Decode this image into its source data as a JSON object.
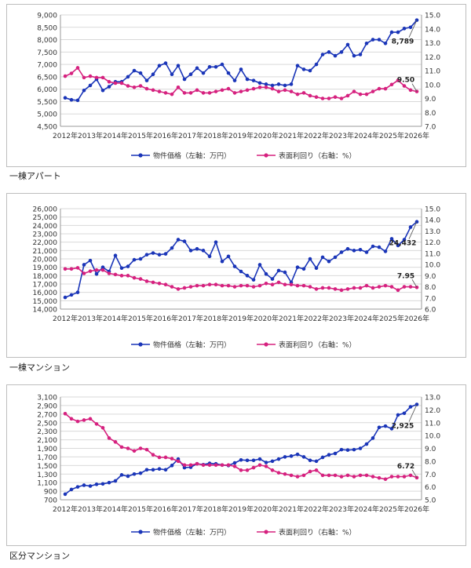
{
  "colors": {
    "price": "#1a35b8",
    "yield": "#d6217f",
    "grid": "#d9d9d9"
  },
  "captions": [
    "一棟アパート",
    "一棟マンション",
    "区分マンション"
  ],
  "chart_data": [
    {
      "type": "line",
      "title": "",
      "legend": {
        "position": "bottom",
        "entries": [
          "物件価格（左軸：万円）",
          "表面利回り（右軸：%）"
        ]
      },
      "x_ticks": [
        "2012年",
        "2013年",
        "2014年",
        "2015年",
        "2016年",
        "2017年",
        "2018年",
        "2019年",
        "2020年",
        "2021年",
        "2022年",
        "2023年",
        "2024年",
        "2025年",
        "2026年"
      ],
      "y_left": {
        "min": 4500,
        "max": 9000,
        "step": 500,
        "ticks": [
          "4,500",
          "5,000",
          "5,500",
          "6,000",
          "6,500",
          "7,000",
          "7,500",
          "8,000",
          "8,500",
          "9,000"
        ]
      },
      "y_right": {
        "min": 7.0,
        "max": 15.0,
        "step": 1.0,
        "ticks": [
          "7.0",
          "8.0",
          "9.0",
          "10.0",
          "11.0",
          "12.0",
          "13.0",
          "14.0",
          "15.0"
        ]
      },
      "series": [
        {
          "name": "物件価格（左軸：万円）",
          "axis": "left",
          "values": [
            5650,
            5570,
            5550,
            5950,
            6150,
            6400,
            5950,
            6100,
            6300,
            6300,
            6500,
            6750,
            6650,
            6350,
            6600,
            6950,
            7050,
            6600,
            6950,
            6400,
            6600,
            6850,
            6650,
            6900,
            6900,
            7000,
            6650,
            6350,
            6800,
            6400,
            6350,
            6250,
            6200,
            6150,
            6200,
            6150,
            6200,
            6950,
            6800,
            6750,
            7000,
            7400,
            7500,
            7350,
            7500,
            7800,
            7350,
            7400,
            7850,
            8000,
            8000,
            7850,
            8300,
            8300,
            8450,
            8500,
            8789
          ]
        },
        {
          "name": "表面利回り（右軸：%）",
          "axis": "right",
          "values": [
            10.6,
            10.8,
            11.2,
            10.5,
            10.6,
            10.5,
            10.5,
            10.2,
            10.1,
            10.1,
            9.9,
            9.8,
            9.9,
            9.7,
            9.6,
            9.5,
            9.4,
            9.3,
            9.8,
            9.4,
            9.4,
            9.6,
            9.4,
            9.4,
            9.5,
            9.6,
            9.7,
            9.4,
            9.5,
            9.6,
            9.7,
            9.8,
            9.8,
            9.7,
            9.5,
            9.6,
            9.5,
            9.3,
            9.4,
            9.2,
            9.1,
            9.0,
            9.0,
            9.1,
            9.0,
            9.2,
            9.5,
            9.3,
            9.3,
            9.5,
            9.7,
            9.7,
            10.0,
            10.3,
            9.9,
            9.6,
            9.5
          ]
        }
      ],
      "annotations": [
        {
          "series": 0,
          "text": "8,789"
        },
        {
          "series": 1,
          "text": "9.50"
        }
      ]
    },
    {
      "type": "line",
      "title": "",
      "legend": {
        "position": "bottom",
        "entries": [
          "物件価格（左軸：万円）",
          "表面利回り（右軸：%）"
        ]
      },
      "x_ticks": [
        "2012年",
        "2013年",
        "2014年",
        "2015年",
        "2016年",
        "2017年",
        "2018年",
        "2019年",
        "2020年",
        "2021年",
        "2022年",
        "2023年",
        "2024年",
        "2025年",
        "2026年"
      ],
      "y_left": {
        "min": 14000,
        "max": 26000,
        "step": 1000,
        "ticks": [
          "14,000",
          "15,000",
          "16,000",
          "17,000",
          "18,000",
          "19,000",
          "20,000",
          "21,000",
          "22,000",
          "23,000",
          "24,000",
          "25,000",
          "26,000"
        ]
      },
      "y_right": {
        "min": 6.0,
        "max": 15.0,
        "step": 1.0,
        "ticks": [
          "6.0",
          "7.0",
          "8.0",
          "9.0",
          "10.0",
          "11.0",
          "12.0",
          "13.0",
          "14.0",
          "15.0"
        ]
      },
      "series": [
        {
          "name": "物件価格（左軸：万円）",
          "axis": "left",
          "values": [
            15400,
            15700,
            16000,
            19300,
            19800,
            18200,
            19000,
            18500,
            20400,
            18900,
            19100,
            19900,
            20000,
            20500,
            20700,
            20500,
            20600,
            21300,
            22300,
            22100,
            21000,
            21200,
            21000,
            20300,
            22000,
            19700,
            20300,
            19100,
            18500,
            18000,
            17500,
            19300,
            18200,
            17600,
            18600,
            18400,
            17200,
            19000,
            18800,
            20000,
            18900,
            20200,
            19700,
            20200,
            20800,
            21200,
            21000,
            21100,
            20800,
            21500,
            21400,
            20900,
            22400,
            21600,
            22300,
            23800,
            24432
          ]
        },
        {
          "name": "表面利回り（右軸：%）",
          "axis": "right",
          "values": [
            9.6,
            9.6,
            9.7,
            9.2,
            9.4,
            9.5,
            9.5,
            9.2,
            9.1,
            9.0,
            9.0,
            8.8,
            8.7,
            8.5,
            8.4,
            8.3,
            8.2,
            8.0,
            7.8,
            7.9,
            8.0,
            8.1,
            8.1,
            8.2,
            8.2,
            8.1,
            8.1,
            8.0,
            8.1,
            8.1,
            8.0,
            8.1,
            8.3,
            8.2,
            8.4,
            8.2,
            8.2,
            8.1,
            8.1,
            8.0,
            7.8,
            7.9,
            7.9,
            7.8,
            7.7,
            7.8,
            7.9,
            7.9,
            8.1,
            7.9,
            8.0,
            8.1,
            8.0,
            7.7,
            8.0,
            8.0,
            7.95
          ]
        }
      ],
      "annotations": [
        {
          "series": 0,
          "text": "24,432"
        },
        {
          "series": 1,
          "text": "7.95"
        }
      ]
    },
    {
      "type": "line",
      "title": "",
      "legend": {
        "position": "bottom",
        "entries": [
          "物件価格（左軸：万円）",
          "表面利回り（右軸：%）"
        ]
      },
      "x_ticks": [
        "2012年",
        "2013年",
        "2014年",
        "2015年",
        "2016年",
        "2017年",
        "2018年",
        "2019年",
        "2020年",
        "2021年",
        "2022年",
        "2023年",
        "2024年",
        "2025年",
        "2026年"
      ],
      "y_left": {
        "min": 700,
        "max": 3100,
        "step": 200,
        "ticks": [
          "700",
          "900",
          "1,100",
          "1,300",
          "1,500",
          "1,700",
          "1,900",
          "2,100",
          "2,300",
          "2,500",
          "2,700",
          "2,900",
          "3,100"
        ]
      },
      "y_right": {
        "min": 5.0,
        "max": 13.0,
        "step": 1.0,
        "ticks": [
          "5.0",
          "6.0",
          "7.0",
          "8.0",
          "9.0",
          "10.0",
          "11.0",
          "12.0",
          "13.0"
        ]
      },
      "series": [
        {
          "name": "物件価格（左軸：万円）",
          "axis": "left",
          "values": [
            830,
            940,
            1000,
            1040,
            1020,
            1060,
            1070,
            1100,
            1140,
            1280,
            1250,
            1300,
            1320,
            1400,
            1400,
            1420,
            1400,
            1500,
            1650,
            1450,
            1460,
            1540,
            1520,
            1550,
            1540,
            1510,
            1500,
            1560,
            1630,
            1620,
            1620,
            1650,
            1570,
            1600,
            1650,
            1700,
            1720,
            1760,
            1700,
            1620,
            1600,
            1690,
            1750,
            1780,
            1870,
            1860,
            1870,
            1900,
            2000,
            2140,
            2390,
            2420,
            2360,
            2680,
            2720,
            2870,
            2925
          ]
        },
        {
          "name": "表面利回り（右軸：%）",
          "axis": "right",
          "values": [
            11.7,
            11.3,
            11.1,
            11.2,
            11.3,
            10.9,
            10.6,
            9.8,
            9.5,
            9.1,
            9.0,
            8.8,
            9.0,
            8.9,
            8.5,
            8.3,
            8.3,
            8.2,
            8.0,
            7.7,
            7.7,
            7.8,
            7.7,
            7.7,
            7.7,
            7.7,
            7.7,
            7.6,
            7.3,
            7.3,
            7.5,
            7.7,
            7.6,
            7.3,
            7.1,
            7.0,
            6.9,
            6.8,
            6.9,
            7.2,
            7.3,
            6.9,
            6.9,
            6.9,
            6.8,
            6.9,
            6.8,
            6.9,
            6.9,
            6.8,
            6.7,
            6.6,
            6.8,
            6.8,
            6.8,
            6.9,
            6.72
          ]
        }
      ],
      "annotations": [
        {
          "series": 0,
          "text": "2,925"
        },
        {
          "series": 1,
          "text": "6.72"
        }
      ]
    }
  ]
}
